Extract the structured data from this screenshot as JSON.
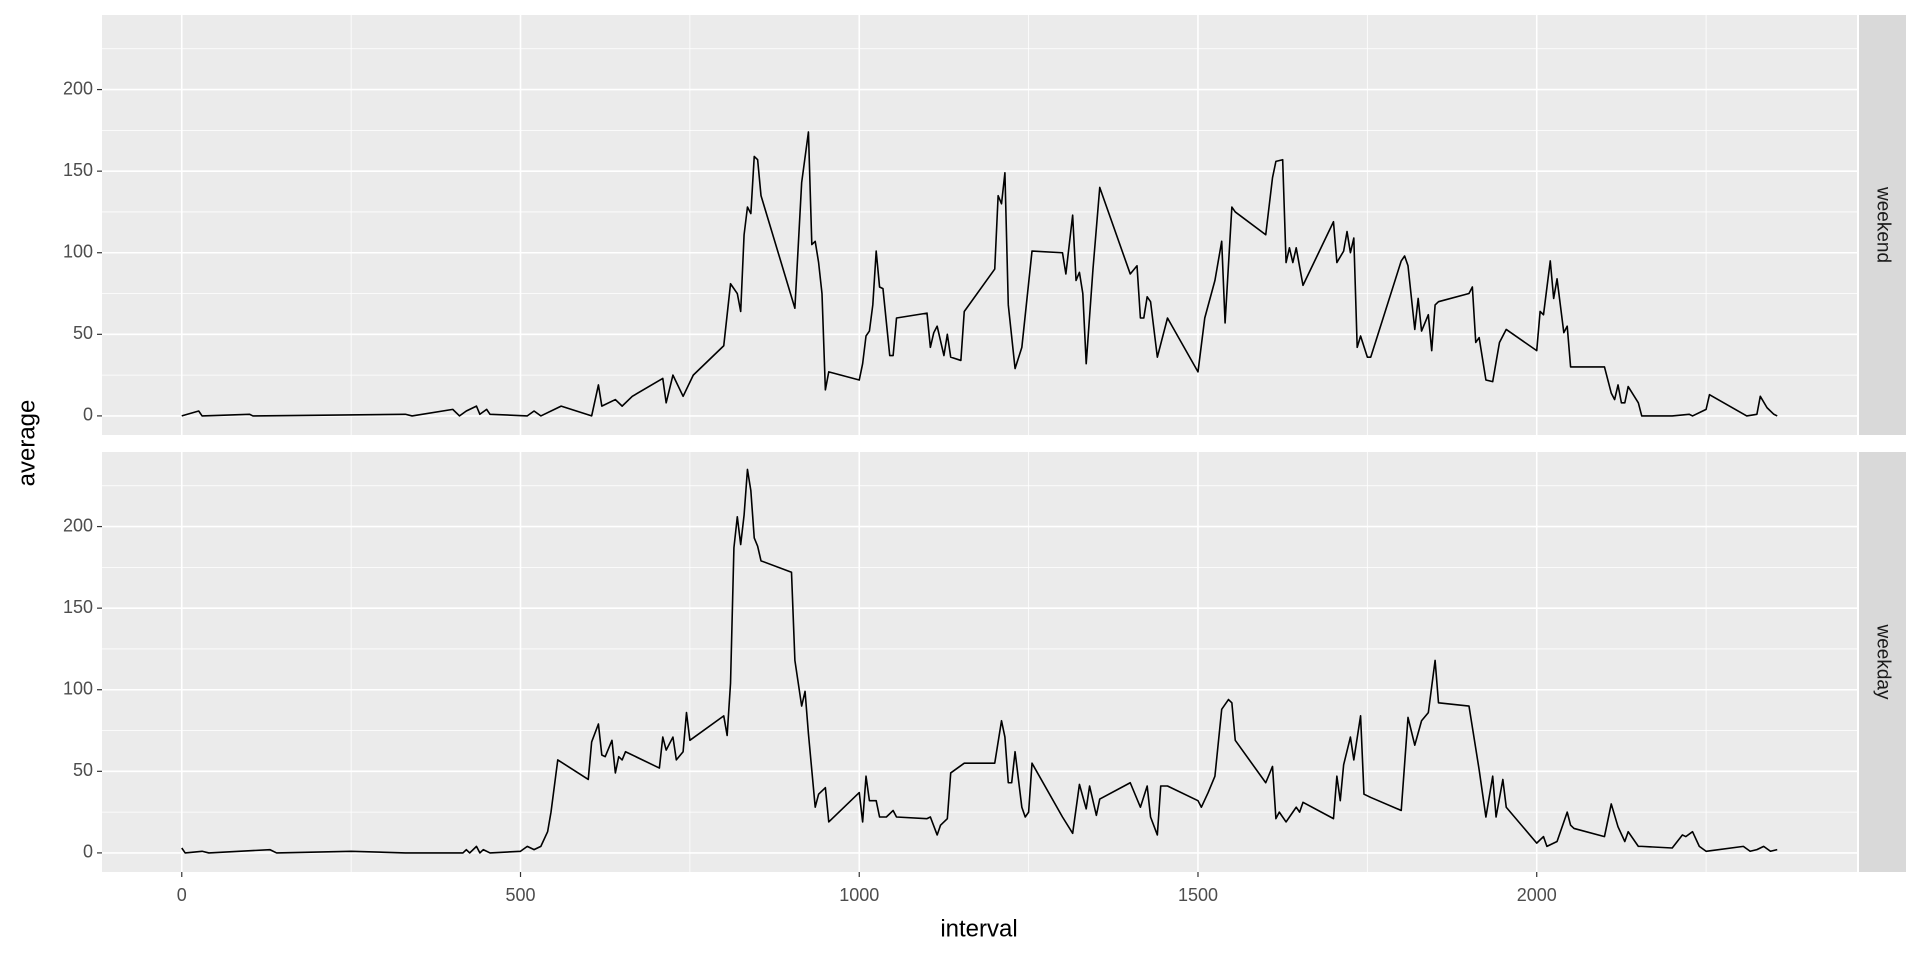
{
  "chart_data": {
    "type": "line",
    "x_label": "interval",
    "y_label": "average",
    "xlim": [
      -117.75,
      2472.75
    ],
    "xticks": [
      0,
      500,
      1000,
      1500,
      2000
    ],
    "xminor": [
      250,
      750,
      1250,
      1750,
      2250
    ],
    "ylim": [
      -11.7,
      245.7
    ],
    "yticks": [
      0,
      50,
      100,
      150,
      200
    ],
    "yminor": [
      25,
      75,
      125,
      175,
      225
    ],
    "grid": true,
    "series": [
      {
        "name": "weekend",
        "color": "#000000",
        "x": [
          0,
          25,
          30,
          100,
          105,
          330,
          340,
          400,
          410,
          420,
          435,
          440,
          450,
          455,
          510,
          520,
          530,
          560,
          605,
          615,
          620,
          640,
          650,
          665,
          710,
          715,
          725,
          740,
          755,
          800,
          810,
          820,
          825,
          830,
          835,
          840,
          845,
          850,
          855,
          905,
          915,
          925,
          930,
          935,
          940,
          945,
          950,
          955,
          1000,
          1005,
          1010,
          1015,
          1020,
          1025,
          1030,
          1035,
          1045,
          1050,
          1055,
          1100,
          1105,
          1110,
          1115,
          1125,
          1130,
          1135,
          1150,
          1155,
          1200,
          1205,
          1210,
          1215,
          1220,
          1230,
          1240,
          1255,
          1300,
          1305,
          1315,
          1320,
          1325,
          1330,
          1335,
          1345,
          1355,
          1400,
          1410,
          1415,
          1420,
          1425,
          1430,
          1440,
          1455,
          1500,
          1510,
          1525,
          1535,
          1540,
          1550,
          1555,
          1600,
          1610,
          1615,
          1625,
          1630,
          1635,
          1640,
          1645,
          1655,
          1700,
          1705,
          1715,
          1720,
          1725,
          1730,
          1735,
          1740,
          1750,
          1755,
          1800,
          1805,
          1810,
          1820,
          1825,
          1830,
          1840,
          1845,
          1850,
          1855,
          1900,
          1905,
          1910,
          1915,
          1925,
          1935,
          1945,
          1955,
          2000,
          2005,
          2010,
          2020,
          2025,
          2030,
          2040,
          2045,
          2050,
          2055,
          2100,
          2110,
          2115,
          2120,
          2125,
          2130,
          2135,
          2150,
          2155,
          2200,
          2225,
          2230,
          2250,
          2255,
          2310,
          2325,
          2330,
          2340,
          2350,
          2355
        ],
        "values": [
          0,
          3,
          0,
          1,
          0,
          1,
          0,
          4,
          0,
          3,
          6,
          1,
          4,
          1,
          0,
          3,
          0,
          6,
          0,
          19,
          6,
          10,
          6,
          12,
          23,
          8,
          25,
          12,
          25,
          43,
          81,
          75,
          64,
          111,
          128,
          124,
          159,
          157,
          135,
          66,
          143,
          174,
          105,
          107,
          94,
          75,
          16,
          27,
          22,
          32,
          49,
          52,
          68,
          101,
          79,
          78,
          37,
          37,
          60,
          63,
          42,
          51,
          55,
          37,
          50,
          36,
          34,
          64,
          90,
          135,
          130,
          149,
          68,
          29,
          42,
          101,
          100,
          87,
          123,
          83,
          88,
          75,
          32,
          90,
          140,
          87,
          92,
          60,
          60,
          73,
          70,
          36,
          60,
          27,
          60,
          83,
          107,
          57,
          128,
          125,
          111,
          146,
          156,
          157,
          94,
          103,
          94,
          103,
          80,
          119,
          94,
          101,
          113,
          100,
          109,
          42,
          49,
          36,
          36,
          95,
          98,
          92,
          53,
          72,
          52,
          62,
          40,
          68,
          70,
          75,
          79,
          45,
          48,
          22,
          21,
          45,
          53,
          40,
          64,
          62,
          95,
          72,
          84,
          51,
          55,
          30,
          30,
          30,
          14,
          10,
          19,
          8,
          8,
          18,
          8,
          0,
          0,
          1,
          0,
          4,
          13,
          0,
          1,
          12,
          5,
          1,
          0
        ]
      },
      {
        "name": "weekday",
        "color": "#000000",
        "x": [
          0,
          5,
          30,
          40,
          130,
          140,
          250,
          330,
          415,
          420,
          425,
          435,
          440,
          445,
          455,
          500,
          510,
          520,
          530,
          540,
          545,
          555,
          600,
          605,
          615,
          620,
          625,
          635,
          640,
          645,
          650,
          655,
          705,
          710,
          715,
          725,
          730,
          740,
          745,
          750,
          800,
          805,
          810,
          815,
          820,
          825,
          830,
          835,
          840,
          845,
          850,
          855,
          900,
          905,
          915,
          920,
          925,
          935,
          940,
          950,
          955,
          1000,
          1005,
          1010,
          1015,
          1025,
          1030,
          1040,
          1050,
          1055,
          1100,
          1105,
          1115,
          1120,
          1130,
          1135,
          1145,
          1155,
          1200,
          1210,
          1215,
          1220,
          1225,
          1230,
          1240,
          1245,
          1250,
          1255,
          1300,
          1315,
          1325,
          1335,
          1340,
          1350,
          1355,
          1400,
          1415,
          1425,
          1430,
          1440,
          1445,
          1455,
          1500,
          1505,
          1515,
          1525,
          1535,
          1545,
          1550,
          1555,
          1600,
          1610,
          1615,
          1620,
          1630,
          1640,
          1645,
          1650,
          1655,
          1700,
          1705,
          1710,
          1715,
          1725,
          1730,
          1740,
          1745,
          1755,
          1800,
          1810,
          1820,
          1830,
          1840,
          1850,
          1855,
          1900,
          1915,
          1925,
          1935,
          1940,
          1950,
          1955,
          2000,
          2010,
          2015,
          2030,
          2045,
          2050,
          2055,
          2100,
          2110,
          2120,
          2130,
          2135,
          2150,
          2155,
          2200,
          2215,
          2220,
          2230,
          2240,
          2250,
          2305,
          2315,
          2325,
          2335,
          2345,
          2355
        ],
        "values": [
          3,
          0,
          1,
          0,
          2,
          0,
          1,
          0,
          0,
          2,
          0,
          4,
          0,
          2,
          0,
          1,
          4,
          2,
          4,
          13,
          25,
          57,
          45,
          68,
          79,
          60,
          59,
          69,
          49,
          59,
          57,
          62,
          52,
          71,
          63,
          71,
          57,
          62,
          86,
          69,
          84,
          72,
          104,
          187,
          206,
          189,
          207,
          235,
          222,
          193,
          188,
          179,
          172,
          118,
          90,
          99,
          73,
          28,
          36,
          40,
          19,
          37,
          19,
          47,
          32,
          32,
          22,
          22,
          26,
          22,
          21,
          22,
          11,
          17,
          21,
          49,
          52,
          55,
          55,
          81,
          71,
          43,
          43,
          62,
          28,
          22,
          25,
          55,
          22,
          12,
          42,
          27,
          41,
          23,
          33,
          43,
          28,
          41,
          22,
          11,
          41,
          41,
          32,
          28,
          37,
          47,
          88,
          94,
          92,
          69,
          43,
          53,
          21,
          25,
          19,
          25,
          28,
          25,
          31,
          21,
          47,
          32,
          54,
          71,
          57,
          84,
          36,
          34,
          26,
          83,
          66,
          81,
          86,
          118,
          92,
          90,
          51,
          22,
          47,
          22,
          45,
          28,
          6,
          10,
          4,
          7,
          25,
          17,
          15,
          10,
          30,
          16,
          7,
          13,
          4,
          4,
          3,
          11,
          10,
          13,
          4,
          1,
          4,
          1,
          2,
          4,
          1,
          2
        ]
      }
    ]
  }
}
